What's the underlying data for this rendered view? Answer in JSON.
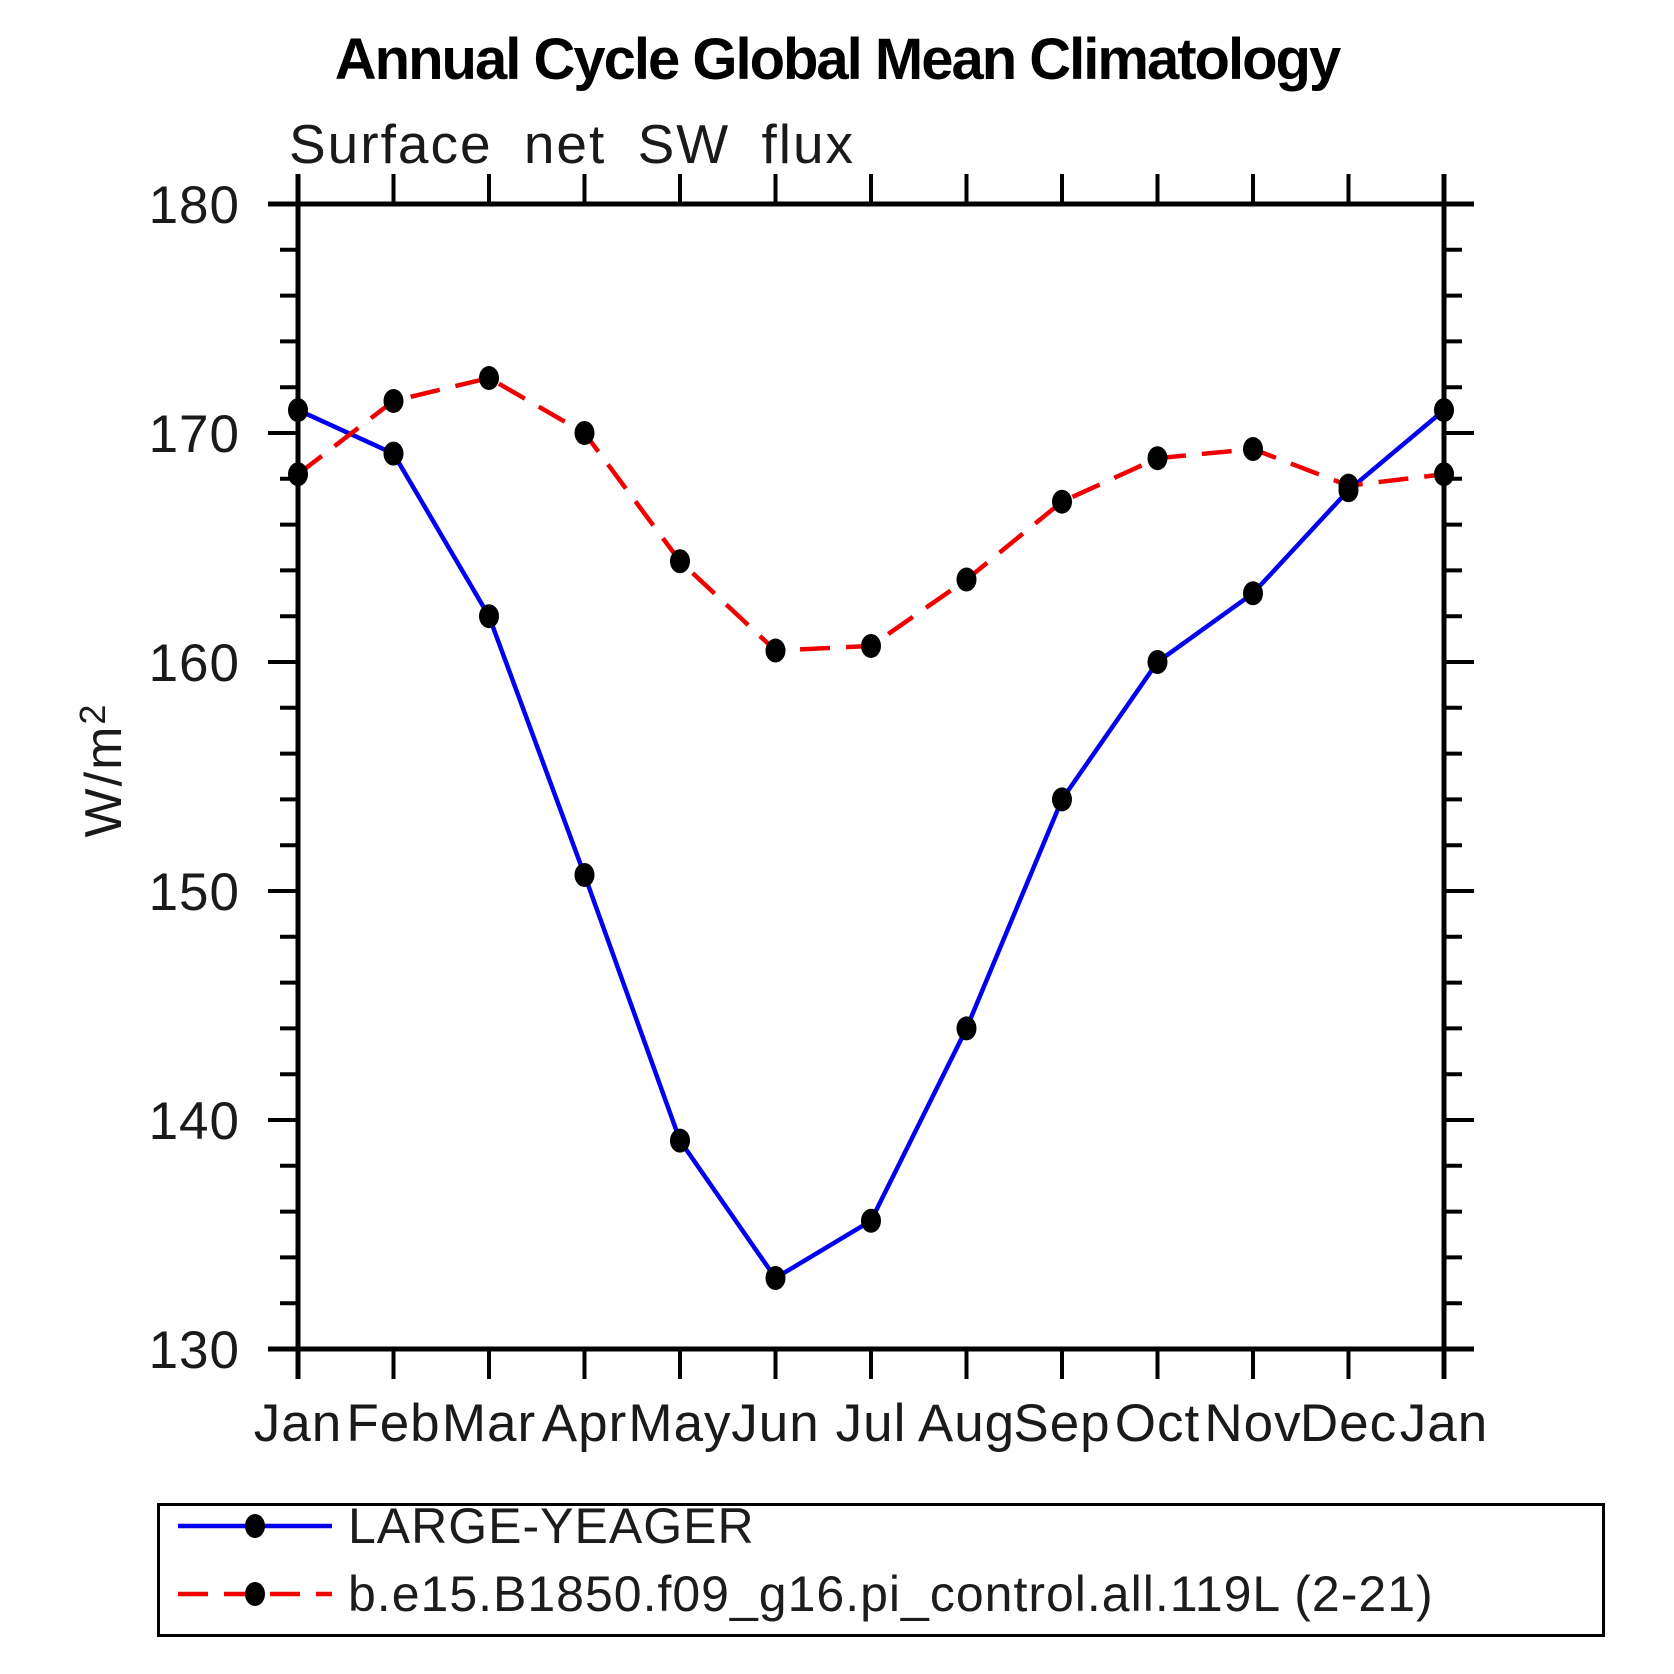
{
  "chart_data": {
    "type": "line",
    "title": "Annual Cycle Global Mean Climatology",
    "subtitle": "Surface net SW flux",
    "ylabel_base": "W/m",
    "ylabel_exponent": "2",
    "categories": [
      "Jan",
      "Feb",
      "Mar",
      "Apr",
      "May",
      "Jun",
      "Jul",
      "Aug",
      "Sep",
      "Oct",
      "Nov",
      "Dec",
      "Jan"
    ],
    "ylim": [
      130,
      180
    ],
    "ytick_major": [
      130,
      140,
      150,
      160,
      170,
      180
    ],
    "ytick_minor_step": 2,
    "grid": false,
    "legend_position": "bottom-box",
    "axis_color": "#000000",
    "tick_label_color": "#1a1a1a",
    "series": [
      {
        "name": "LARGE-YEAGER",
        "line_color": "#0101f0",
        "line_style": "solid",
        "marker": "filled-circle",
        "marker_color": "#000000",
        "values": [
          171.0,
          169.1,
          162.0,
          150.7,
          139.1,
          133.1,
          135.6,
          144.0,
          154.0,
          160.0,
          163.0,
          167.5,
          171.0
        ]
      },
      {
        "name": "b.e15.B1850.f09_g16.pi_control.all.119L (2-21)",
        "line_color": "#f00000",
        "line_style": "dashed",
        "marker": "filled-circle",
        "marker_color": "#000000",
        "values": [
          168.2,
          171.4,
          172.4,
          170.0,
          164.4,
          160.5,
          160.7,
          163.6,
          167.0,
          168.9,
          169.3,
          167.7,
          168.2
        ]
      }
    ]
  }
}
